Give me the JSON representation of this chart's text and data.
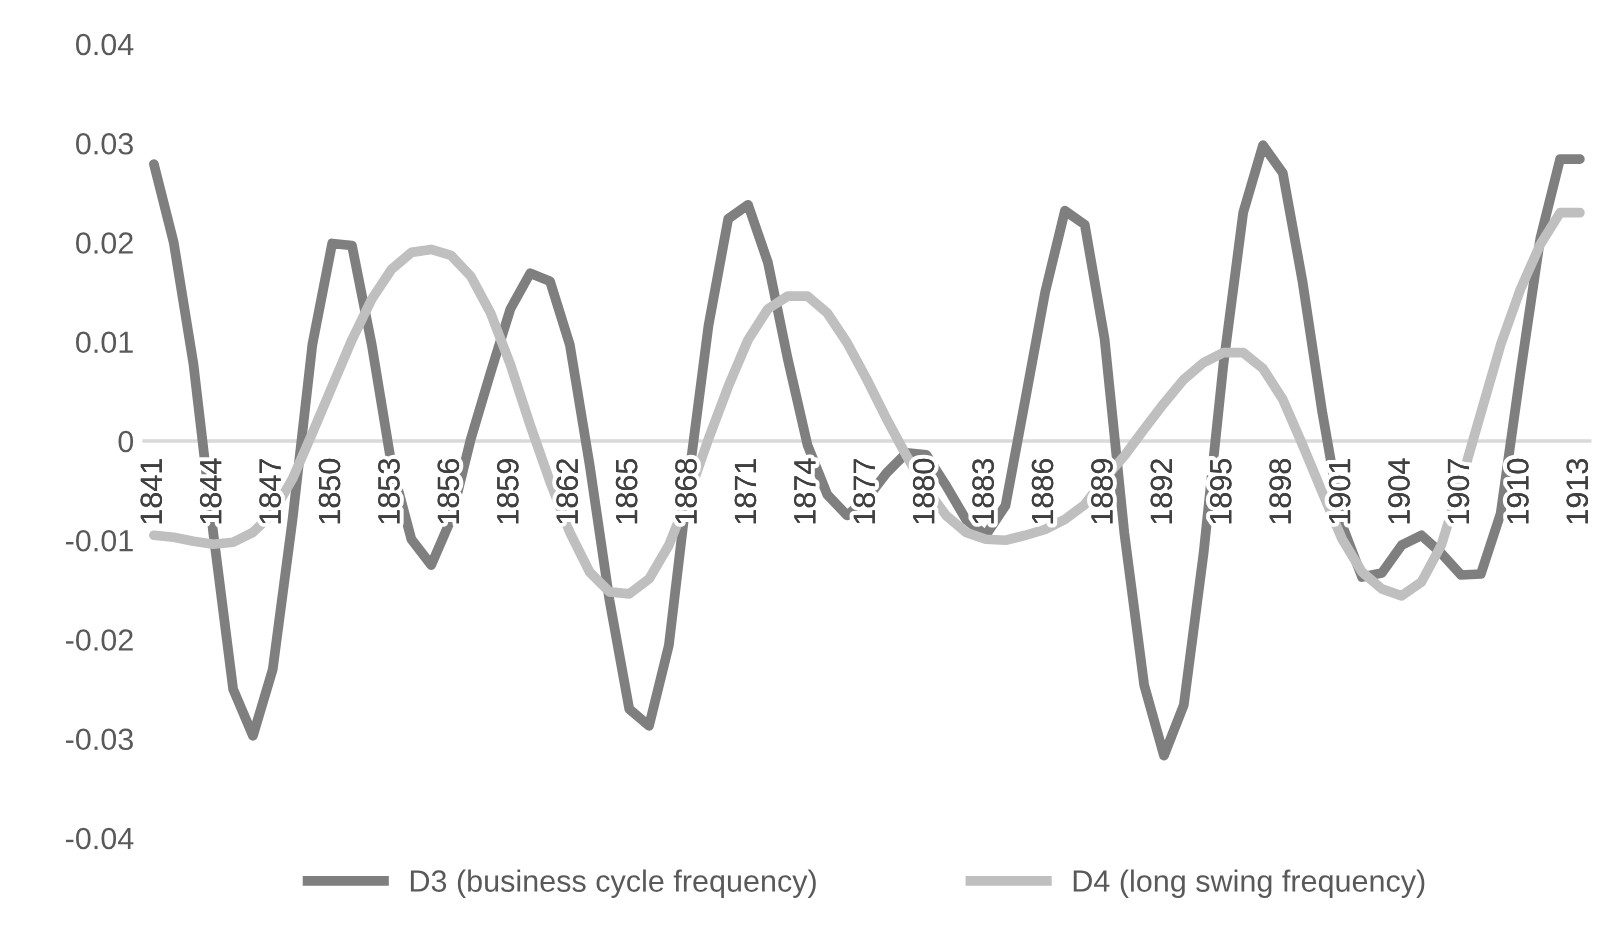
{
  "chart_data": {
    "type": "line",
    "categories": [
      "1841",
      null,
      null,
      "1844",
      null,
      null,
      "1847",
      null,
      null,
      "1850",
      null,
      null,
      "1853",
      null,
      null,
      "1856",
      null,
      null,
      "1859",
      null,
      null,
      "1862",
      null,
      null,
      "1865",
      null,
      null,
      "1868",
      null,
      null,
      "1871",
      null,
      null,
      "1874",
      null,
      null,
      "1877",
      null,
      null,
      "1880",
      null,
      null,
      "1883",
      null,
      null,
      "1886",
      null,
      null,
      "1889",
      null,
      null,
      "1892",
      null,
      null,
      "1895",
      null,
      null,
      "1898",
      null,
      null,
      "1901",
      null,
      null,
      "1904",
      null,
      null,
      "1907",
      null,
      null,
      "1910",
      null,
      null,
      "1913"
    ],
    "series": [
      {
        "name": "D3 (business cycle frequency)",
        "color": "#7f7f7f",
        "values": [
          0.0279,
          0.02,
          0.0077,
          -0.0093,
          -0.025,
          -0.0297,
          -0.023,
          -0.0079,
          0.0097,
          0.0199,
          0.0197,
          0.0097,
          -0.0024,
          -0.0099,
          -0.0125,
          -0.0079,
          0.0002,
          0.0069,
          0.0133,
          0.0169,
          0.0161,
          0.0097,
          -0.0024,
          -0.016,
          -0.027,
          -0.0287,
          -0.0206,
          -0.0038,
          0.0116,
          0.0224,
          0.0238,
          0.018,
          0.0083,
          -0.0004,
          -0.0054,
          -0.0075,
          -0.0058,
          -0.0032,
          -0.0012,
          -0.0014,
          -0.0045,
          -0.0079,
          -0.0095,
          -0.0065,
          0.0042,
          0.015,
          0.0232,
          0.0218,
          0.0103,
          -0.0093,
          -0.0246,
          -0.0317,
          -0.0266,
          -0.0113,
          0.0077,
          0.023,
          0.0298,
          0.027,
          0.016,
          0.0028,
          -0.0085,
          -0.0137,
          -0.0133,
          -0.0105,
          -0.0095,
          -0.0113,
          -0.0135,
          -0.0134,
          -0.0073,
          0.0069,
          0.0204,
          0.0284,
          0.0284
        ]
      },
      {
        "name": "D4 (long swing frequency)",
        "color": "#bfbfbf",
        "values": [
          -0.0095,
          -0.0097,
          -0.0101,
          -0.0104,
          -0.0102,
          -0.0092,
          -0.0073,
          -0.0038,
          0.0008,
          0.0055,
          0.0102,
          0.0143,
          0.0173,
          0.019,
          0.0193,
          0.0187,
          0.0166,
          0.0129,
          0.0077,
          0.0016,
          -0.0041,
          -0.0092,
          -0.0132,
          -0.0152,
          -0.0154,
          -0.0139,
          -0.0105,
          -0.0055,
          0.0002,
          0.0055,
          0.0102,
          0.0133,
          0.0146,
          0.0146,
          0.0129,
          0.0099,
          0.0062,
          0.0022,
          -0.0015,
          -0.0048,
          -0.0075,
          -0.0092,
          -0.0099,
          -0.01,
          -0.0095,
          -0.0089,
          -0.0079,
          -0.0064,
          -0.0038,
          -0.0015,
          0.0012,
          0.0038,
          0.0062,
          0.0079,
          0.0089,
          0.0089,
          0.0073,
          0.0042,
          -0.0004,
          -0.0052,
          -0.0099,
          -0.0132,
          -0.0149,
          -0.0156,
          -0.0142,
          -0.0105,
          -0.0041,
          0.0028,
          0.0097,
          0.0153,
          0.0198,
          0.023,
          0.023
        ]
      }
    ],
    "ylim": [
      -0.04,
      0.04
    ],
    "yticks": [
      -0.04,
      -0.03,
      -0.02,
      -0.01,
      0,
      0.01,
      0.02,
      0.03,
      0.04
    ],
    "grid": false,
    "legend": "bottom",
    "marker": "none",
    "line_style": "solid"
  }
}
